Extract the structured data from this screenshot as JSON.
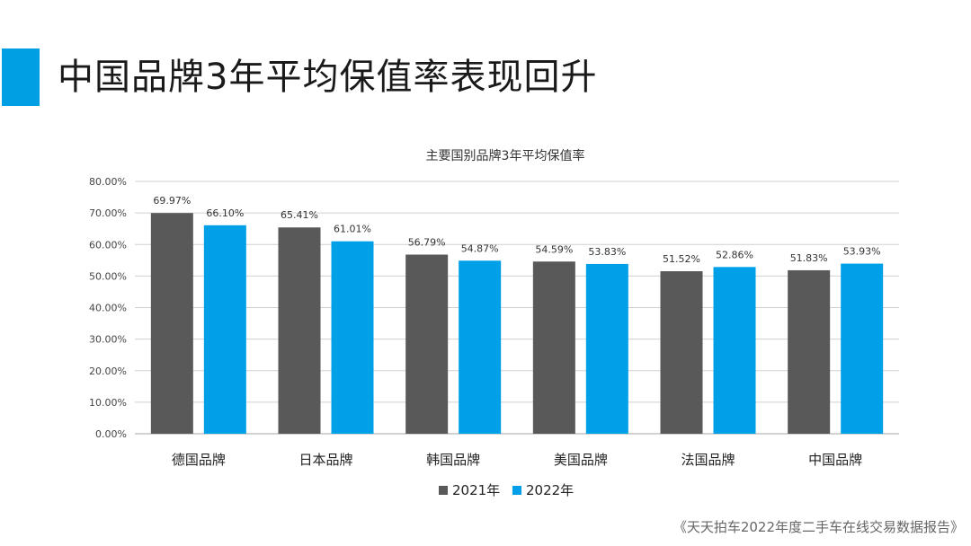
{
  "page": {
    "title": "中国品牌3年平均保值率表现回升",
    "source": "《天天拍车2022年度二手车在线交易数据报告》",
    "accent_color": "#009fe3"
  },
  "chart_data": {
    "type": "bar",
    "title": "主要国别品牌3年平均保值率",
    "categories": [
      "德国品牌",
      "日本品牌",
      "韩国品牌",
      "美国品牌",
      "法国品牌",
      "中国品牌"
    ],
    "series": [
      {
        "name": "2021年",
        "color": "#595959",
        "values": [
          69.97,
          65.41,
          56.79,
          54.59,
          51.52,
          51.83
        ],
        "labels": [
          "69.97%",
          "65.41%",
          "56.79%",
          "54.59%",
          "51.52%",
          "51.83%"
        ]
      },
      {
        "name": "2022年",
        "color": "#00a0e9",
        "values": [
          66.1,
          61.01,
          54.87,
          53.83,
          52.86,
          53.93
        ],
        "labels": [
          "66.10%",
          "61.01%",
          "54.87%",
          "53.83%",
          "52.86%",
          "53.93%"
        ]
      }
    ],
    "yticks": [
      "0.00%",
      "10.00%",
      "20.00%",
      "30.00%",
      "40.00%",
      "50.00%",
      "60.00%",
      "70.00%",
      "80.00%"
    ],
    "ylim": [
      0,
      80
    ],
    "grid": true,
    "legend_position": "bottom"
  }
}
